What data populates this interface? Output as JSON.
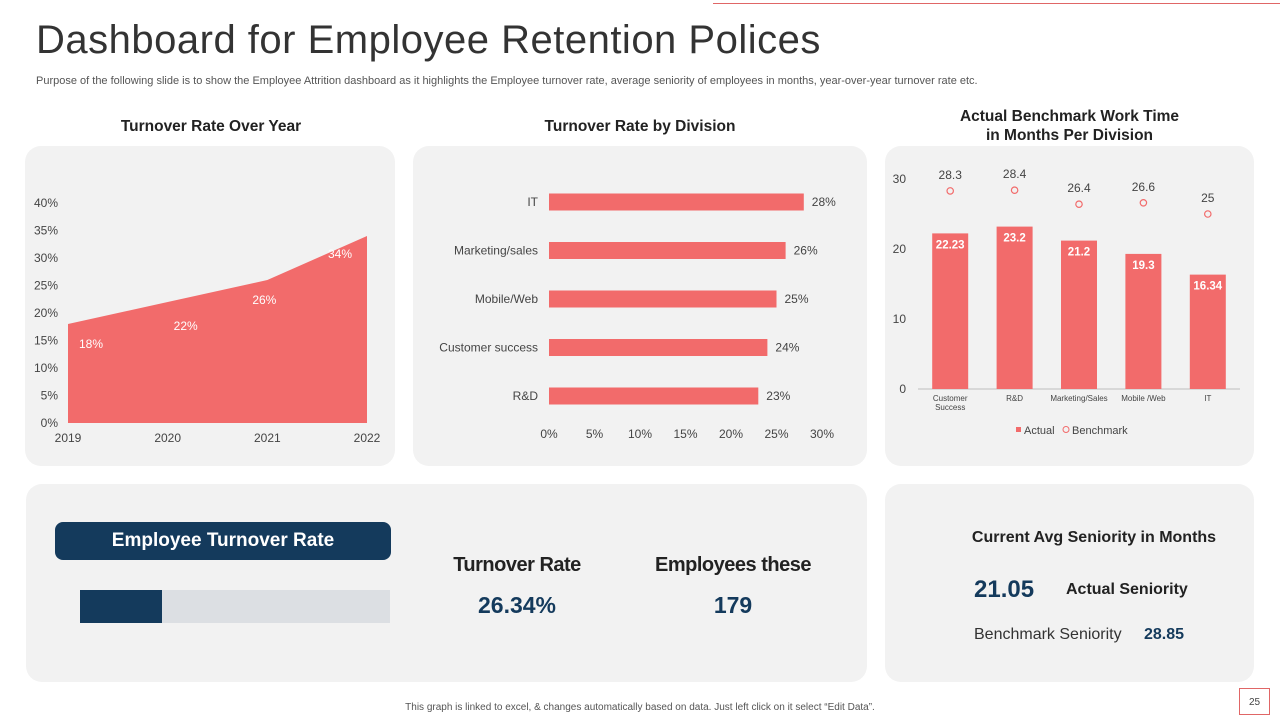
{
  "header": {
    "title": "Dashboard for Employee Retention Polices",
    "subtitle": "Purpose of the following slide is to show the Employee Attrition  dashboard as it highlights the Employee turnover rate, average seniority of employees in months, year-over-year turnover rate etc."
  },
  "chart_data": [
    {
      "type": "area",
      "title": "Turnover Rate Over Year",
      "x": [
        "2019",
        "2020",
        "2021",
        "2022"
      ],
      "values": [
        18,
        22,
        26,
        34
      ],
      "data_labels": [
        "18%",
        "22%",
        "26%",
        "34%"
      ],
      "ylim": [
        0,
        40
      ],
      "yticks": [
        "0%",
        "5%",
        "10%",
        "15%",
        "20%",
        "25%",
        "30%",
        "35%",
        "40%"
      ],
      "xlabel": "",
      "ylabel": "",
      "color": "#f26b6b"
    },
    {
      "type": "bar",
      "orientation": "horizontal",
      "title": "Turnover Rate by Division",
      "categories": [
        "IT",
        "Marketing/sales",
        "Mobile/Web",
        "Customer success",
        "R&D"
      ],
      "values": [
        28,
        26,
        25,
        24,
        23
      ],
      "data_labels": [
        "28%",
        "26%",
        "25%",
        "24%",
        "23%"
      ],
      "xlim": [
        0,
        30
      ],
      "xticks": [
        "0%",
        "5%",
        "10%",
        "15%",
        "20%",
        "25%",
        "30%"
      ],
      "color": "#f26b6b"
    },
    {
      "type": "bar",
      "title": "Actual Benchmark Work Time in Months Per Division",
      "title_lines": [
        "Actual Benchmark Work Time",
        "in Months Per Division"
      ],
      "categories": [
        "Customer Success",
        "R&D",
        "Marketing/Sales",
        "Mobile /Web",
        "IT"
      ],
      "category_lines": [
        [
          "Customer",
          "Success"
        ],
        [
          "R&D"
        ],
        [
          "Marketing/Sales"
        ],
        [
          "Mobile /Web"
        ],
        [
          "IT"
        ]
      ],
      "series": [
        {
          "name": "Actual",
          "values": [
            22.23,
            23.2,
            21.2,
            19.3,
            16.34
          ],
          "labels": [
            "22.23",
            "23.2",
            "21.2",
            "19.3",
            "16.34"
          ],
          "style": "bar"
        },
        {
          "name": "Benchmark",
          "values": [
            28.3,
            28.4,
            26.4,
            26.6,
            25
          ],
          "labels": [
            "28.3",
            "28.4",
            "26.4",
            "26.6",
            "25"
          ],
          "style": "marker"
        }
      ],
      "ylim": [
        0,
        30
      ],
      "yticks": [
        "0",
        "10",
        "20",
        "30"
      ],
      "legend_position": "bottom",
      "colors": {
        "Actual": "#f26b6b",
        "Benchmark": "#f26b6b"
      }
    }
  ],
  "turnover": {
    "heading": "Employee Turnover Rate",
    "progress_fraction": 0.2634,
    "rate_label": "Turnover Rate",
    "rate_value": "26.34%",
    "employees_label": "Employees these",
    "employees_value": "179"
  },
  "seniority": {
    "heading": "Current Avg Seniority in Months",
    "actual_value": "21.05",
    "actual_label": "Actual Seniority",
    "benchmark_label": "Benchmark Seniority",
    "benchmark_value": "28.85"
  },
  "footer": {
    "note": "This graph is linked to excel, & changes automatically based on data. Just left click on it select “Edit Data”.",
    "page_number": "25"
  },
  "colors": {
    "accent": "#f26b6b",
    "navy": "#143a5c",
    "panel": "#f2f2f2",
    "rule": "#e06666"
  }
}
